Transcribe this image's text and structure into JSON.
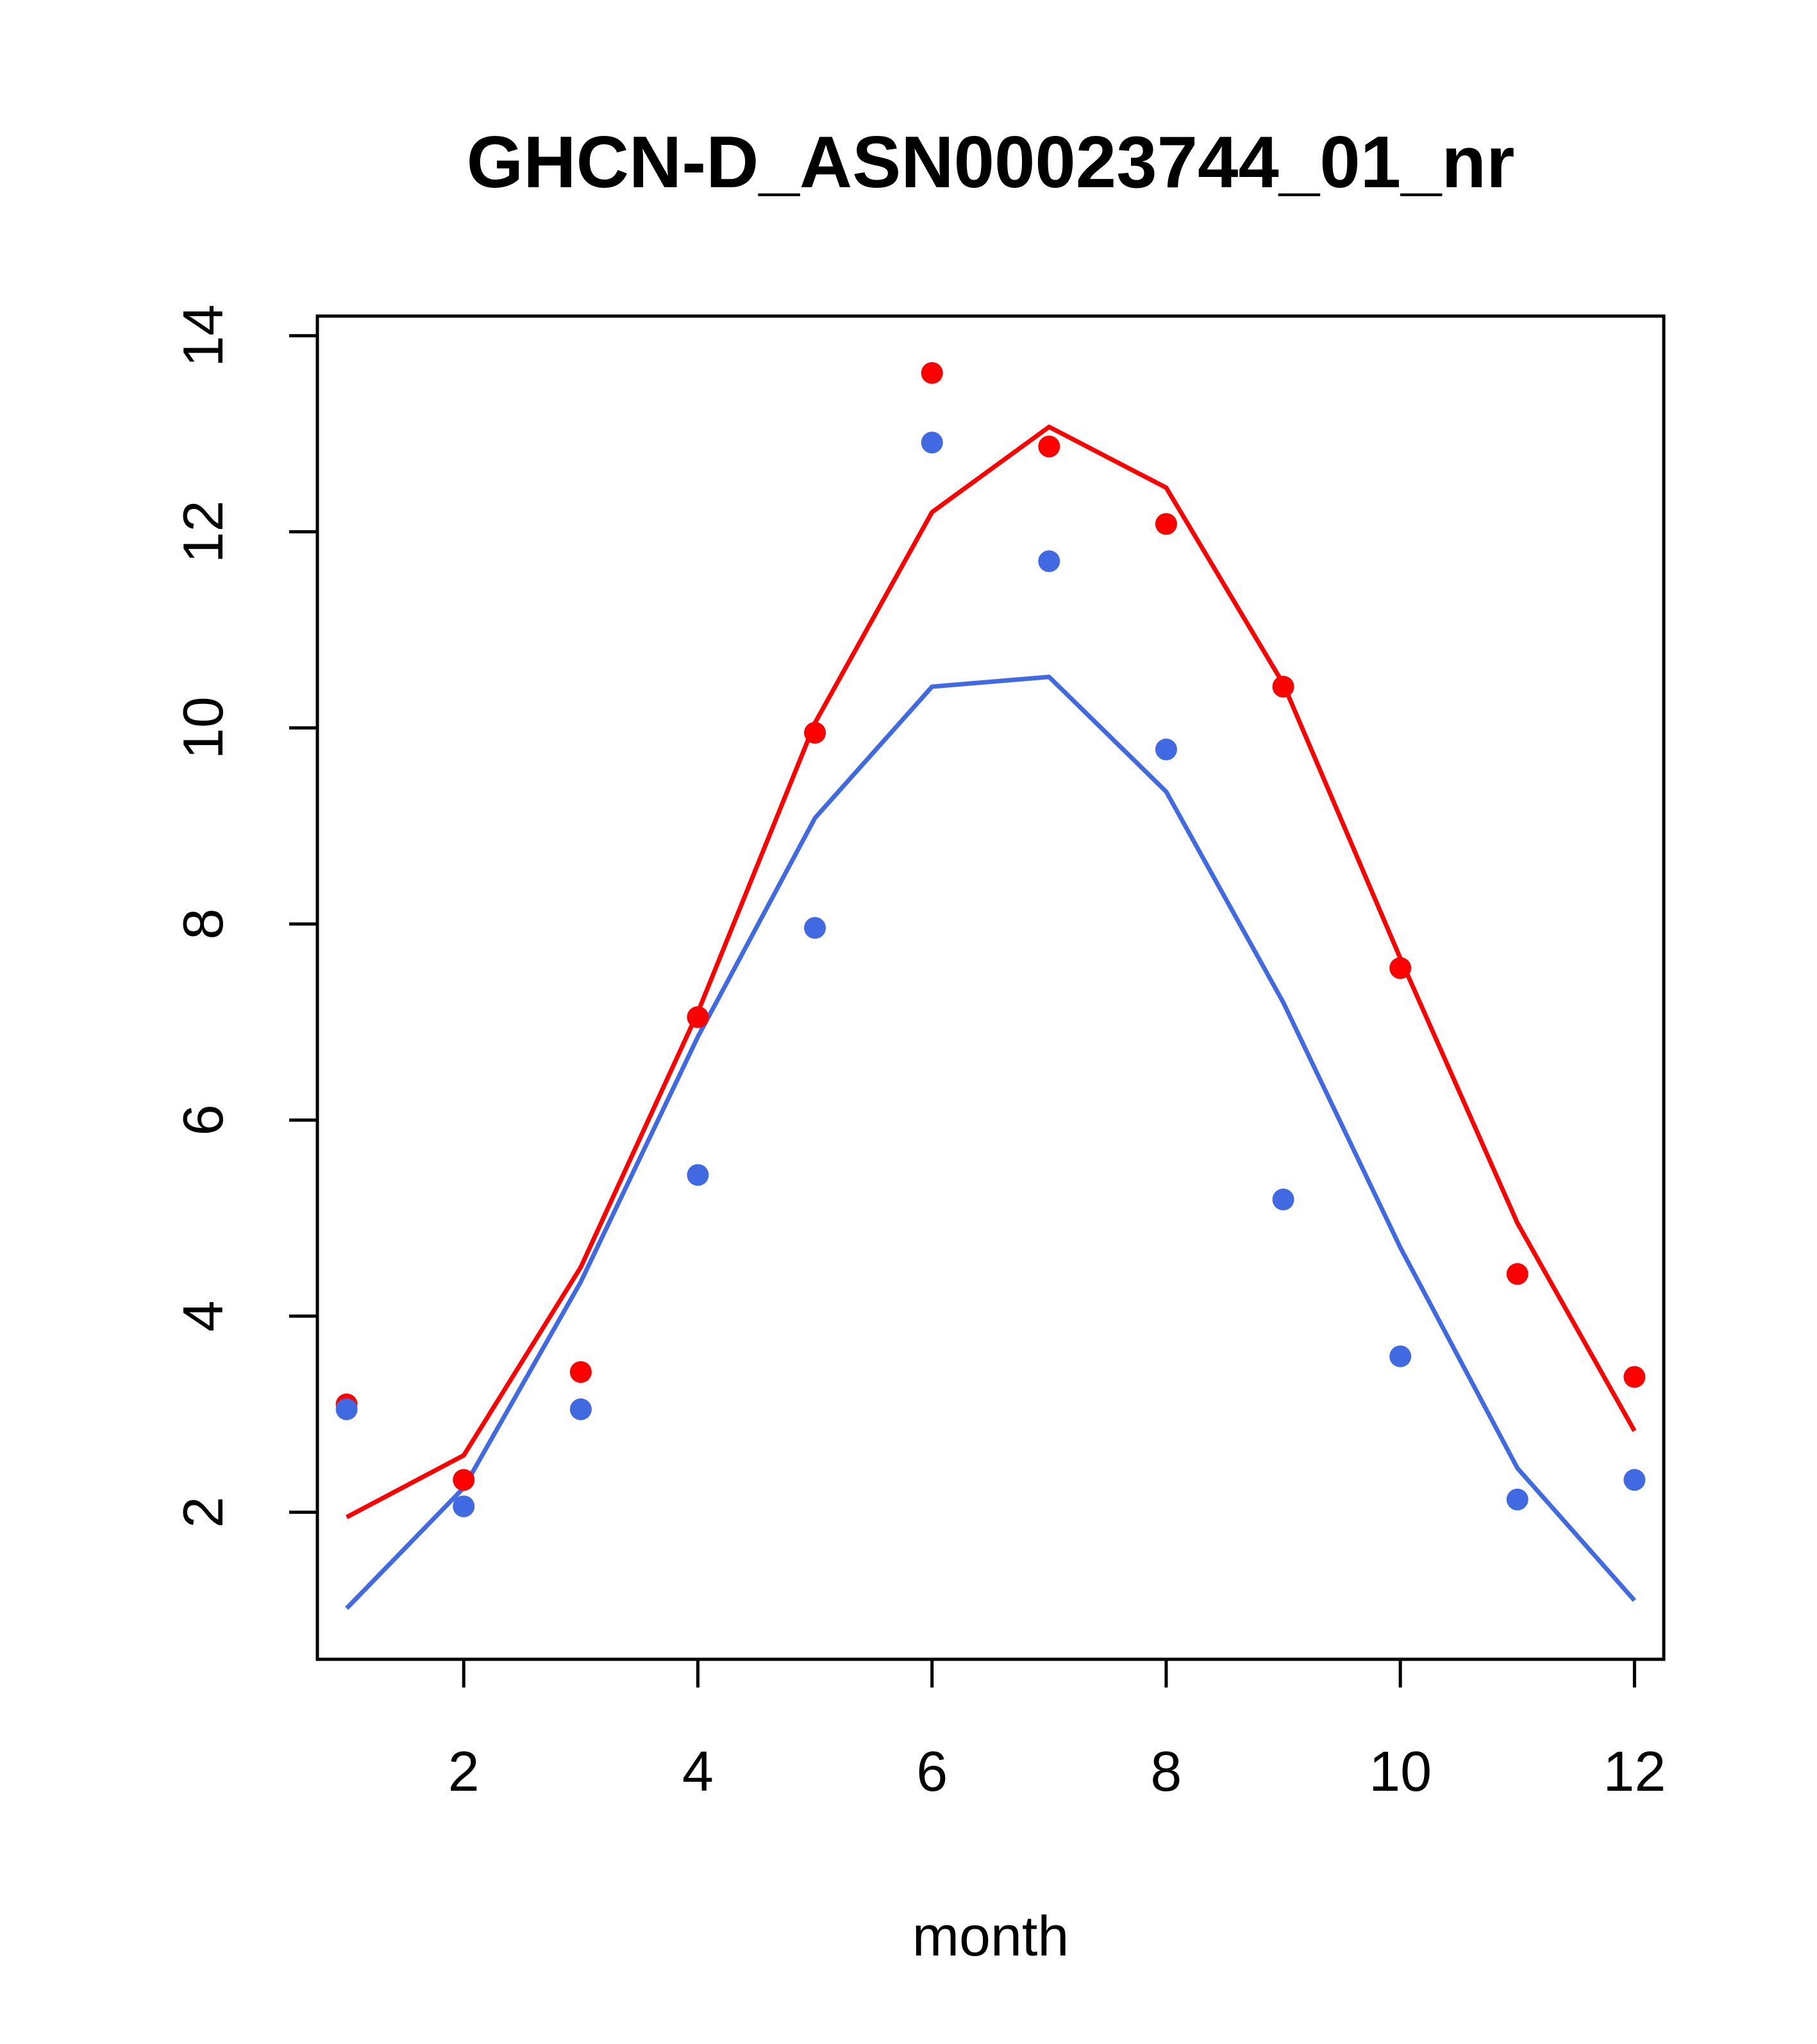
{
  "chart_data": {
    "type": "line",
    "title": "GHCN-D_ASN00023744_01_nr",
    "xlabel": "month",
    "ylabel": "",
    "xlim": [
      0.75,
      12.25
    ],
    "ylim": [
      0.5,
      14.2
    ],
    "x_ticks": [
      2,
      4,
      6,
      8,
      10,
      12
    ],
    "x_tick_labels": [
      "2",
      "4",
      "6",
      "8",
      "10",
      "12"
    ],
    "y_ticks": [
      2,
      4,
      6,
      8,
      10,
      12,
      14
    ],
    "y_tick_labels": [
      "2",
      "4",
      "6",
      "8",
      "10",
      "12",
      "14"
    ],
    "grid": false,
    "legend": "none",
    "x": [
      1,
      2,
      3,
      4,
      5,
      6,
      7,
      8,
      9,
      10,
      11,
      12
    ],
    "series": [
      {
        "color": "#ff0000",
        "line": [
          1.95,
          2.58,
          4.5,
          7.1,
          10.05,
          12.2,
          13.07,
          12.45,
          10.45,
          7.65,
          4.95,
          2.83
        ],
        "points": [
          3.1,
          2.33,
          3.43,
          7.05,
          9.95,
          13.62,
          12.87,
          12.08,
          10.42,
          7.55,
          4.43,
          3.38
        ]
      },
      {
        "color": "#4169e1",
        "line": [
          1.02,
          2.25,
          4.35,
          6.85,
          9.08,
          10.42,
          10.52,
          9.35,
          7.2,
          4.7,
          2.45,
          1.1
        ],
        "points": [
          3.05,
          2.06,
          3.05,
          5.44,
          7.96,
          12.91,
          11.7,
          9.78,
          5.19,
          3.59,
          2.13,
          2.33
        ]
      }
    ]
  }
}
